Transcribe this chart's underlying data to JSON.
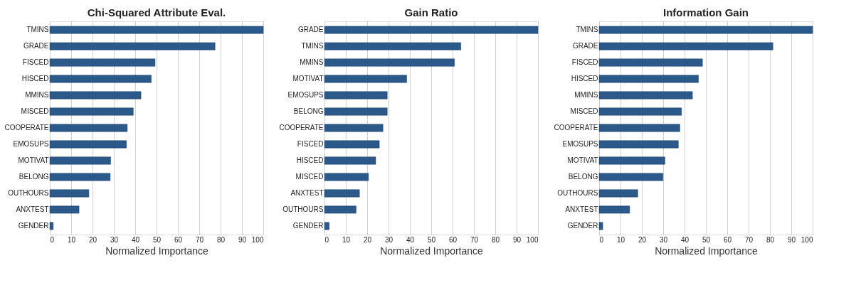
{
  "chart_data": [
    {
      "type": "bar",
      "orientation": "horizontal",
      "title": "Chi-Squared Attribute Eval.",
      "xlabel": "Normalized Importance",
      "categories": [
        "TMINS",
        "GRADE",
        "FISCED",
        "HISCED",
        "MMINS",
        "MISCED",
        "COOPERATE",
        "EMOSUPS",
        "MOTIVAT",
        "BELONG",
        "OUTHOURS",
        "ANXTEST",
        "GENDER"
      ],
      "values": [
        100,
        77.4,
        49.3,
        47.5,
        42.7,
        39.1,
        36.3,
        35.9,
        28.5,
        28.3,
        18.3,
        13.7,
        1.6
      ],
      "color": "#2b5a8a",
      "xlim": [
        0,
        100
      ],
      "xticks": [
        0,
        10,
        20,
        30,
        40,
        50,
        60,
        70,
        80,
        90,
        100
      ],
      "grid": "x"
    },
    {
      "type": "bar",
      "orientation": "horizontal",
      "title": "Gain Ratio",
      "xlabel": "Normalized Importance",
      "categories": [
        "GRADE",
        "TMINS",
        "MMINS",
        "MOTIVAT",
        "EMOSUPS",
        "BELONG",
        "COOPERATE",
        "FISCED",
        "HISCED",
        "MISCED",
        "ANXTEST",
        "OUTHOURS",
        "GENDER"
      ],
      "values": [
        100,
        63.9,
        60.9,
        38.5,
        29.4,
        29.4,
        27.4,
        25.7,
        24.0,
        20.6,
        16.4,
        14.8,
        2.2
      ],
      "color": "#2b5a8a",
      "xlim": [
        0,
        100
      ],
      "xticks": [
        0,
        10,
        20,
        30,
        40,
        50,
        60,
        70,
        80,
        90,
        100
      ],
      "grid": "x"
    },
    {
      "type": "bar",
      "orientation": "horizontal",
      "title": "Information Gain",
      "xlabel": "Normalized Importance",
      "categories": [
        "TMINS",
        "GRADE",
        "FISCED",
        "HISCED",
        "MMINS",
        "MISCED",
        "COOPERATE",
        "EMOSUPS",
        "MOTIVAT",
        "BELONG",
        "OUTHOURS",
        "ANXTEST",
        "GENDER"
      ],
      "values": [
        100,
        81.4,
        48.4,
        46.5,
        43.7,
        38.6,
        37.8,
        37.1,
        30.8,
        29.9,
        18.1,
        14.3,
        1.7
      ],
      "color": "#2b5a8a",
      "xlim": [
        0,
        100
      ],
      "xticks": [
        0,
        10,
        20,
        30,
        40,
        50,
        60,
        70,
        80,
        90,
        100
      ],
      "grid": "x"
    }
  ]
}
